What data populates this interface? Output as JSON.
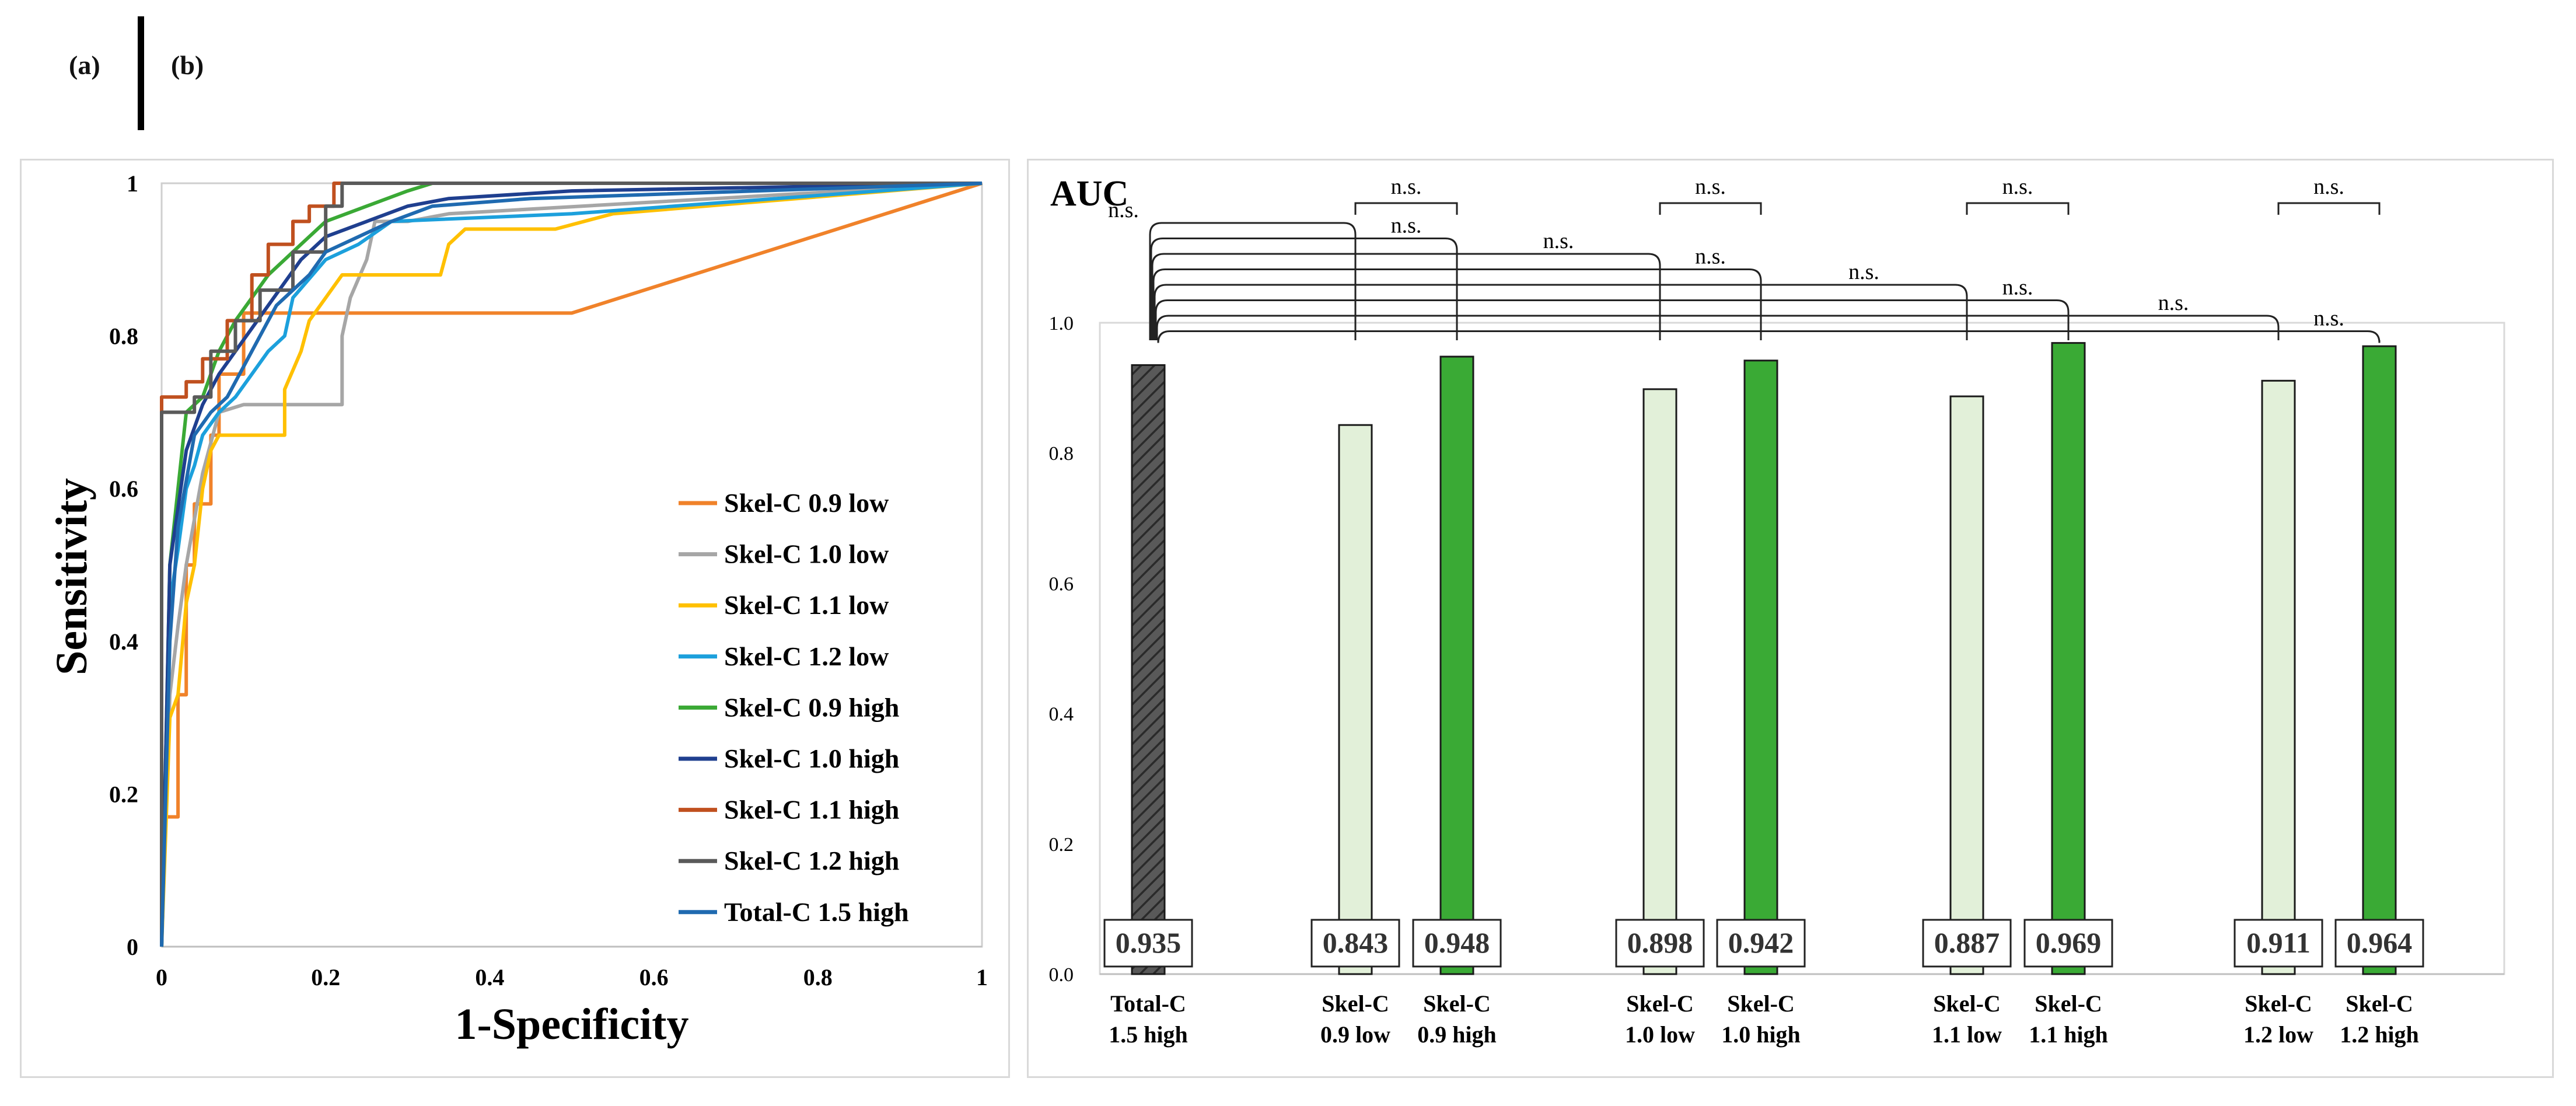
{
  "panel_labels": {
    "a": "(a)",
    "b": "(b)"
  },
  "chart_data": [
    {
      "type": "line",
      "xlabel": "1-Specificity",
      "ylabel": "Sensitivity",
      "xlim": [
        0,
        1
      ],
      "ylim": [
        0,
        1
      ],
      "xticks": [
        "0",
        "0.2",
        "0.4",
        "0.6",
        "0.8",
        "1"
      ],
      "yticks": [
        "0",
        "0.2",
        "0.4",
        "0.6",
        "0.8",
        "1"
      ],
      "grid": false,
      "legend_position": "bottom-right",
      "series": [
        {
          "name": "Skel-C 0.9 low",
          "color": "#f0822a",
          "x": [
            0,
            0,
            0.02,
            0.02,
            0.03,
            0.03,
            0.04,
            0.04,
            0.06,
            0.06,
            0.07,
            0.07,
            0.1,
            0.1,
            0.5,
            1
          ],
          "y": [
            0,
            0.17,
            0.17,
            0.33,
            0.33,
            0.5,
            0.5,
            0.58,
            0.58,
            0.67,
            0.67,
            0.75,
            0.75,
            0.83,
            0.83,
            1
          ]
        },
        {
          "name": "Skel-C 1.0 low",
          "color": "#a6a6a6",
          "x": [
            0,
            0.01,
            0.02,
            0.03,
            0.05,
            0.07,
            0.1,
            0.13,
            0.2,
            0.22,
            0.22,
            0.23,
            0.25,
            0.26,
            0.3,
            0.35,
            1
          ],
          "y": [
            0,
            0.33,
            0.42,
            0.5,
            0.62,
            0.7,
            0.71,
            0.71,
            0.71,
            0.71,
            0.8,
            0.85,
            0.9,
            0.95,
            0.95,
            0.96,
            1
          ]
        },
        {
          "name": "Skel-C 1.1 low",
          "color": "#ffc000",
          "x": [
            0,
            0.01,
            0.02,
            0.03,
            0.04,
            0.05,
            0.06,
            0.07,
            0.1,
            0.15,
            0.15,
            0.17,
            0.18,
            0.2,
            0.22,
            0.25,
            0.34,
            0.35,
            0.37,
            0.48,
            0.55,
            1
          ],
          "y": [
            0,
            0.3,
            0.33,
            0.45,
            0.5,
            0.6,
            0.65,
            0.67,
            0.67,
            0.67,
            0.73,
            0.78,
            0.82,
            0.85,
            0.88,
            0.88,
            0.88,
            0.92,
            0.94,
            0.94,
            0.96,
            1
          ]
        },
        {
          "name": "Skel-C 1.2 low",
          "color": "#1ca0dc",
          "x": [
            0,
            0.01,
            0.02,
            0.03,
            0.04,
            0.05,
            0.07,
            0.09,
            0.11,
            0.13,
            0.15,
            0.16,
            0.2,
            0.24,
            0.28,
            0.5,
            1
          ],
          "y": [
            0,
            0.45,
            0.52,
            0.6,
            0.63,
            0.67,
            0.7,
            0.72,
            0.75,
            0.78,
            0.8,
            0.85,
            0.9,
            0.92,
            0.95,
            0.96,
            1
          ]
        },
        {
          "name": "Skel-C 0.9 high",
          "color": "#3aa935",
          "x": [
            0,
            0.01,
            0.02,
            0.03,
            0.05,
            0.07,
            0.09,
            0.11,
            0.13,
            0.15,
            0.17,
            0.2,
            0.25,
            0.3,
            0.33,
            1
          ],
          "y": [
            0,
            0.5,
            0.6,
            0.7,
            0.72,
            0.78,
            0.82,
            0.85,
            0.88,
            0.9,
            0.92,
            0.95,
            0.97,
            0.99,
            1,
            1
          ]
        },
        {
          "name": "Skel-C 1.0 high",
          "color": "#1f3f8f",
          "x": [
            0,
            0.01,
            0.03,
            0.05,
            0.07,
            0.09,
            0.11,
            0.13,
            0.15,
            0.17,
            0.2,
            0.25,
            0.3,
            0.35,
            0.5,
            1
          ],
          "y": [
            0,
            0.5,
            0.65,
            0.71,
            0.75,
            0.78,
            0.81,
            0.84,
            0.87,
            0.9,
            0.93,
            0.95,
            0.97,
            0.98,
            0.99,
            1
          ]
        },
        {
          "name": "Skel-C 1.1 high",
          "color": "#c0501f",
          "x": [
            0,
            0,
            0.03,
            0.03,
            0.05,
            0.05,
            0.08,
            0.08,
            0.11,
            0.11,
            0.13,
            0.13,
            0.16,
            0.16,
            0.18,
            0.18,
            0.21,
            0.21,
            1
          ],
          "y": [
            0,
            0.72,
            0.72,
            0.74,
            0.74,
            0.77,
            0.77,
            0.82,
            0.82,
            0.88,
            0.88,
            0.92,
            0.92,
            0.95,
            0.95,
            0.97,
            0.97,
            1,
            1
          ]
        },
        {
          "name": "Skel-C 1.2 high",
          "color": "#5a5a5a",
          "x": [
            0,
            0,
            0.04,
            0.04,
            0.06,
            0.06,
            0.09,
            0.09,
            0.12,
            0.12,
            0.16,
            0.16,
            0.2,
            0.2,
            0.22,
            0.22,
            1
          ],
          "y": [
            0,
            0.7,
            0.7,
            0.72,
            0.72,
            0.78,
            0.78,
            0.82,
            0.82,
            0.86,
            0.86,
            0.91,
            0.91,
            0.97,
            0.97,
            1,
            1
          ]
        },
        {
          "name": "Total-C 1.5 high",
          "color": "#1f6ab0",
          "x": [
            0,
            0.01,
            0.02,
            0.04,
            0.06,
            0.08,
            0.1,
            0.12,
            0.14,
            0.16,
            0.18,
            0.2,
            0.24,
            0.28,
            0.33,
            0.45,
            1
          ],
          "y": [
            0,
            0.4,
            0.55,
            0.67,
            0.7,
            0.72,
            0.76,
            0.8,
            0.84,
            0.86,
            0.88,
            0.91,
            0.93,
            0.95,
            0.97,
            0.98,
            1
          ]
        }
      ]
    },
    {
      "type": "bar",
      "ylabel": "AUC",
      "ylim": [
        0,
        1.0
      ],
      "yticks": [
        "0.0",
        "0.2",
        "0.4",
        "0.6",
        "0.8",
        "1.0"
      ],
      "grid": false,
      "groups": [
        [
          "Total-C 1.5 high"
        ],
        [
          "Skel-C 0.9 low",
          "Skel-C 0.9 high"
        ],
        [
          "Skel-C 1.0 low",
          "Skel-C 1.0 high"
        ],
        [
          "Skel-C 1.1 low",
          "Skel-C 1.1 high"
        ],
        [
          "Skel-C 1.2 low",
          "Skel-C 1.2 high"
        ]
      ],
      "bars": [
        {
          "label_line1": "Total-C",
          "label_line2": "1.5 high",
          "value": 0.935,
          "value_label": "0.935",
          "style": "hatched",
          "color": "#595959"
        },
        {
          "label_line1": "Skel-C",
          "label_line2": "0.9 low",
          "value": 0.843,
          "value_label": "0.843",
          "style": "light",
          "color": "#e2f0d9"
        },
        {
          "label_line1": "Skel-C",
          "label_line2": "0.9 high",
          "value": 0.948,
          "value_label": "0.948",
          "style": "dark",
          "color": "#3aaa35"
        },
        {
          "label_line1": "Skel-C",
          "label_line2": "1.0 low",
          "value": 0.898,
          "value_label": "0.898",
          "style": "light",
          "color": "#e2f0d9"
        },
        {
          "label_line1": "Skel-C",
          "label_line2": "1.0 high",
          "value": 0.942,
          "value_label": "0.942",
          "style": "dark",
          "color": "#3aaa35"
        },
        {
          "label_line1": "Skel-C",
          "label_line2": "1.1 low",
          "value": 0.887,
          "value_label": "0.887",
          "style": "light",
          "color": "#e2f0d9"
        },
        {
          "label_line1": "Skel-C",
          "label_line2": "1.1 high",
          "value": 0.969,
          "value_label": "0.969",
          "style": "dark",
          "color": "#3aaa35"
        },
        {
          "label_line1": "Skel-C",
          "label_line2": "1.2 low",
          "value": 0.911,
          "value_label": "0.911",
          "style": "light",
          "color": "#e2f0d9"
        },
        {
          "label_line1": "Skel-C",
          "label_line2": "1.2 high",
          "value": 0.964,
          "value_label": "0.964",
          "style": "dark",
          "color": "#3aaa35"
        }
      ],
      "comparisons": [
        {
          "from": 0,
          "to": 1,
          "label": "n.s."
        },
        {
          "from": 0,
          "to": 2,
          "label": "n.s."
        },
        {
          "from": 0,
          "to": 3,
          "label": "n.s."
        },
        {
          "from": 0,
          "to": 4,
          "label": "n.s."
        },
        {
          "from": 0,
          "to": 5,
          "label": "n.s."
        },
        {
          "from": 0,
          "to": 6,
          "label": "n.s."
        },
        {
          "from": 0,
          "to": 7,
          "label": "n.s."
        },
        {
          "from": 0,
          "to": 8,
          "label": "n.s."
        },
        {
          "from": 1,
          "to": 2,
          "label": "n.s."
        },
        {
          "from": 3,
          "to": 4,
          "label": "n.s."
        },
        {
          "from": 5,
          "to": 6,
          "label": "n.s."
        },
        {
          "from": 7,
          "to": 8,
          "label": "n.s."
        }
      ]
    }
  ]
}
